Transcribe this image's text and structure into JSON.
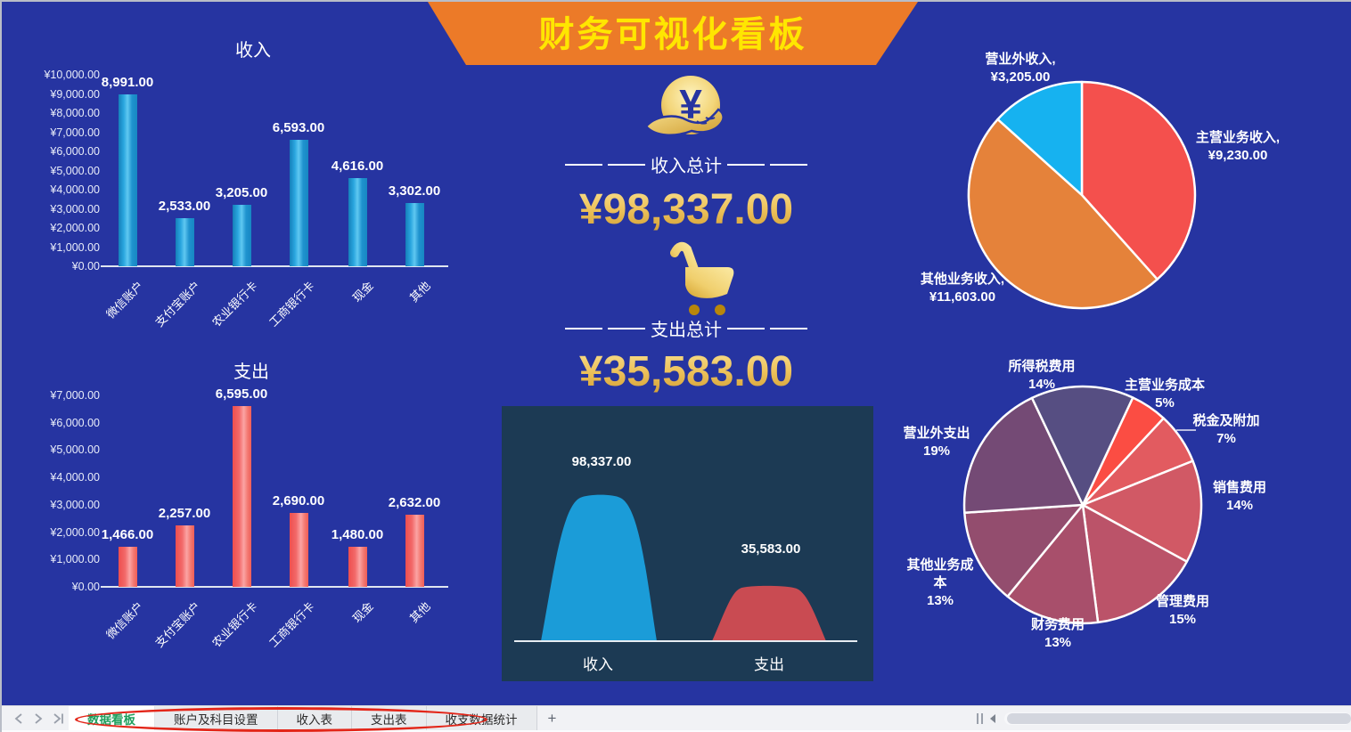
{
  "header": {
    "title": "财务可视化看板",
    "banner_color": "#ec7a28",
    "title_color": "#ffe600"
  },
  "summary": {
    "income_title": "收入总计",
    "income_total": "¥98,337.00",
    "expense_title": "支出总计",
    "expense_total": "¥35,583.00",
    "income_icon": "coin-in-hand-icon",
    "expense_icon": "shopping-cart-icon",
    "gold_color": "#eec35c"
  },
  "chart_data": [
    {
      "id": "income_bar",
      "type": "bar",
      "title": "收入",
      "categories": [
        "微信账户",
        "支付宝账户",
        "农业银行卡",
        "工商银行卡",
        "现金",
        "其他"
      ],
      "values": [
        8991,
        2533,
        3205,
        6593,
        4616,
        3302
      ],
      "value_labels": [
        "8,991.00",
        "2,533.00",
        "3,205.00",
        "6,593.00",
        "4,616.00",
        "3,302.00"
      ],
      "ylim": [
        0,
        10000
      ],
      "yticks": [
        "¥10,000.00",
        "¥9,000.00",
        "¥8,000.00",
        "¥7,000.00",
        "¥6,000.00",
        "¥5,000.00",
        "¥4,000.00",
        "¥3,000.00",
        "¥2,000.00",
        "¥1,000.00",
        "¥0.00"
      ],
      "bar_color": "#29a4dd",
      "grid": false
    },
    {
      "id": "expense_bar",
      "type": "bar",
      "title": "支出",
      "categories": [
        "微信账户",
        "支付宝账户",
        "农业银行卡",
        "工商银行卡",
        "现金",
        "其他"
      ],
      "values": [
        1466,
        2257,
        6595,
        2690,
        1480,
        2632
      ],
      "value_labels": [
        "1,466.00",
        "2,257.00",
        "6,595.00",
        "2,690.00",
        "1,480.00",
        "2,632.00"
      ],
      "ylim": [
        0,
        7000
      ],
      "yticks": [
        "¥7,000.00",
        "¥6,000.00",
        "¥5,000.00",
        "¥4,000.00",
        "¥3,000.00",
        "¥2,000.00",
        "¥1,000.00",
        "¥0.00"
      ],
      "bar_color": "#f25b5b",
      "grid": false
    },
    {
      "id": "income_pie",
      "type": "pie",
      "start_angle": 0,
      "slices": [
        {
          "name": "主营业务收入",
          "value": 9230,
          "color": "#f4504d",
          "label_lines": [
            "主营业务收入,",
            "¥9,230.00"
          ]
        },
        {
          "name": "其他业务收入",
          "value": 11603,
          "color": "#e5823a",
          "label_lines": [
            "其他业务收入,",
            "¥11,603.00"
          ]
        },
        {
          "name": "营业外收入",
          "value": 3205,
          "color": "#16b2f0",
          "label_lines": [
            "营业外收入,",
            "¥3,205.00"
          ]
        }
      ]
    },
    {
      "id": "expense_pie",
      "type": "pie",
      "start_angle": 25,
      "slices": [
        {
          "name": "主营业务成本",
          "value": 5,
          "color": "#fb4d43",
          "label_lines": [
            "主营业务成本",
            "5%"
          ]
        },
        {
          "name": "税金及附加",
          "value": 7,
          "color": "#e25b60",
          "label_lines": [
            "税金及附加",
            "7%"
          ]
        },
        {
          "name": "销售费用",
          "value": 14,
          "color": "#d15965",
          "label_lines": [
            "销售费用",
            "14%"
          ]
        },
        {
          "name": "管理费用",
          "value": 15,
          "color": "#bb5369",
          "label_lines": [
            "管理费用",
            "15%"
          ]
        },
        {
          "name": "财务费用",
          "value": 13,
          "color": "#a84f6b",
          "label_lines": [
            "财务费用",
            "13%"
          ]
        },
        {
          "name": "其他业务成本",
          "value": 13,
          "color": "#934d6e",
          "label_lines": [
            "其他业务成",
            "本",
            "13%"
          ]
        },
        {
          "name": "营业外支出",
          "value": 19,
          "color": "#744a75",
          "label_lines": [
            "营业外支出",
            "19%"
          ]
        },
        {
          "name": "所得税费用",
          "value": 14,
          "color": "#564e82",
          "label_lines": [
            "所得税费用",
            "14%"
          ]
        }
      ]
    },
    {
      "id": "totals_area",
      "type": "area",
      "categories": [
        "收入",
        "支出"
      ],
      "values": [
        98337,
        35583
      ],
      "value_labels": [
        "98,337.00",
        "35,583.00"
      ],
      "colors": [
        "#1b9cd8",
        "#c94b52"
      ],
      "panel_bg": "#1c3a54"
    }
  ],
  "window": {
    "nav_icons": [
      "chevron-left",
      "chevron-right",
      "chevron-last"
    ],
    "tabs": [
      {
        "label": "数据看板",
        "active": true
      },
      {
        "label": "账户及科目设置",
        "active": false
      },
      {
        "label": "收入表",
        "active": false
      },
      {
        "label": "支出表",
        "active": false
      },
      {
        "label": "收支数据统计",
        "active": false
      }
    ],
    "add_sheet_label": "+",
    "active_tab_color": "#1fa05e",
    "annotation_color": "#e32619"
  }
}
